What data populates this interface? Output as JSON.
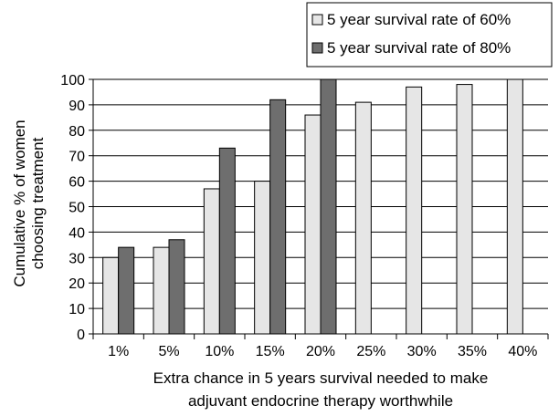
{
  "chart_data": {
    "type": "bar",
    "categories": [
      "1%",
      "5%",
      "10%",
      "15%",
      "20%",
      "25%",
      "30%",
      "35%",
      "40%"
    ],
    "series": [
      {
        "name": "5 year survival rate of 60%",
        "color": "#e6e6e6",
        "values": [
          30,
          34,
          57,
          60,
          86,
          91,
          97,
          98,
          100
        ]
      },
      {
        "name": "5 year survival rate of 80%",
        "color": "#6e6e6e",
        "values": [
          34,
          37,
          73,
          92,
          100,
          null,
          null,
          null,
          null
        ]
      }
    ],
    "ylim": [
      0,
      100
    ],
    "yticks": [
      0,
      10,
      20,
      30,
      40,
      50,
      60,
      70,
      80,
      90,
      100
    ],
    "ytick_labels": [
      "0",
      "10",
      "20",
      "30",
      "40",
      "50",
      "60",
      "70",
      "80",
      "90",
      "100"
    ],
    "ylabel_lines": [
      "Cumulative % of women",
      "choosing treatment"
    ],
    "xlabel_lines": [
      "Extra chance in 5 years survival needed to make",
      "adjuvant endocrine therapy worthwhile"
    ],
    "grid": true,
    "legend_position": "top-right"
  }
}
